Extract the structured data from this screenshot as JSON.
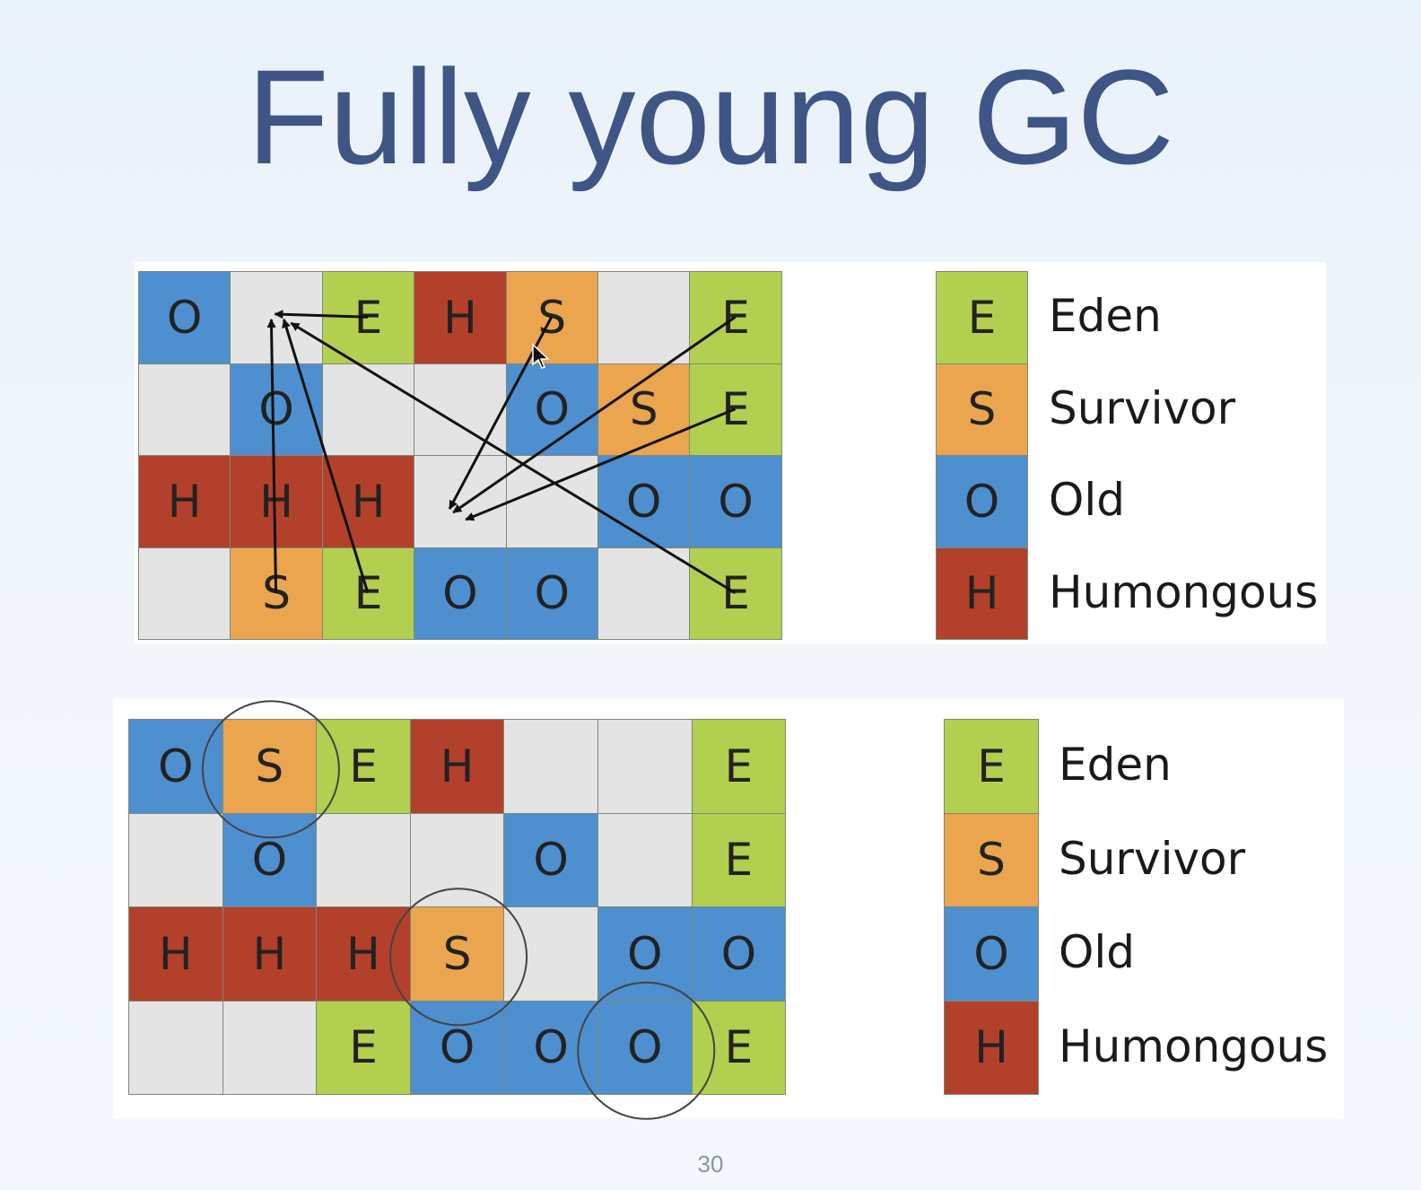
{
  "title": "Fully young GC",
  "page_number": "30",
  "colors": {
    "E": "#b3cf4f",
    "S": "#eba54e",
    "O": "#4e8fcf",
    "H": "#b3402a",
    "empty": "#e4e4e4"
  },
  "before": {
    "rows": [
      [
        "O",
        "",
        "E",
        "H",
        "S",
        "",
        "E"
      ],
      [
        "",
        "O",
        "",
        "",
        "O",
        "S",
        "E"
      ],
      [
        "H",
        "H",
        "H",
        "",
        "",
        "O",
        "O"
      ],
      [
        "",
        "S",
        "E",
        "O",
        "O",
        "",
        "E"
      ]
    ],
    "arrows": [
      {
        "from": [
          0,
          2
        ],
        "to": [
          0,
          1
        ]
      },
      {
        "from": [
          3,
          1
        ],
        "to": [
          0,
          1
        ]
      },
      {
        "from": [
          3,
          2
        ],
        "to": [
          0,
          1
        ]
      },
      {
        "from": [
          3,
          6
        ],
        "to": [
          0,
          1
        ]
      },
      {
        "from": [
          0,
          4
        ],
        "to": [
          2,
          3
        ]
      },
      {
        "from": [
          0,
          6
        ],
        "to": [
          2,
          3
        ]
      },
      {
        "from": [
          1,
          6
        ],
        "to": [
          2,
          3
        ]
      }
    ]
  },
  "after": {
    "rows": [
      [
        "O",
        "S",
        "E",
        "H",
        "",
        "",
        "E"
      ],
      [
        "",
        "O",
        "",
        "",
        "O",
        "",
        "E"
      ],
      [
        "H",
        "H",
        "H",
        "S",
        "",
        "O",
        "O"
      ],
      [
        "",
        "",
        "E",
        "O",
        "O",
        "O",
        "E"
      ]
    ],
    "circled": [
      [
        0,
        1
      ],
      [
        2,
        3
      ],
      [
        3,
        5
      ]
    ]
  },
  "legend": [
    {
      "letter": "E",
      "label": "Eden"
    },
    {
      "letter": "S",
      "label": "Survivor"
    },
    {
      "letter": "O",
      "label": "Old"
    },
    {
      "letter": "H",
      "label": "Humongous"
    }
  ]
}
